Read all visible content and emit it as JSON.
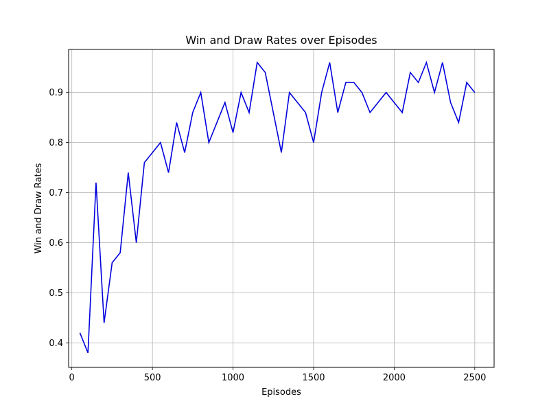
{
  "chart_data": {
    "type": "line",
    "title": "Win and Draw Rates over Episodes",
    "xlabel": "Episodes",
    "ylabel": "Win and Draw Rates",
    "xlim": [
      -20,
      2620
    ],
    "ylim": [
      0.351,
      0.986
    ],
    "x_ticks": [
      0,
      500,
      1000,
      1500,
      2000,
      2500
    ],
    "y_ticks": [
      0.4,
      0.5,
      0.6,
      0.7,
      0.8,
      0.9
    ],
    "grid": true,
    "legend": "none",
    "series": [
      {
        "color": "#0000dd",
        "x": [
          50,
          100,
          150,
          200,
          250,
          300,
          350,
          400,
          450,
          500,
          550,
          600,
          650,
          700,
          750,
          800,
          850,
          900,
          950,
          1000,
          1050,
          1100,
          1150,
          1200,
          1250,
          1300,
          1350,
          1400,
          1450,
          1500,
          1550,
          1600,
          1650,
          1700,
          1750,
          1800,
          1850,
          1900,
          1950,
          2000,
          2050,
          2100,
          2150,
          2200,
          2250,
          2300,
          2350,
          2400,
          2450,
          2500
        ],
        "y": [
          0.42,
          0.38,
          0.72,
          0.44,
          0.56,
          0.58,
          0.74,
          0.6,
          0.76,
          0.78,
          0.8,
          0.74,
          0.84,
          0.78,
          0.86,
          0.9,
          0.8,
          0.84,
          0.88,
          0.82,
          0.9,
          0.86,
          0.96,
          0.94,
          0.86,
          0.78,
          0.9,
          0.88,
          0.86,
          0.8,
          0.9,
          0.96,
          0.86,
          0.92,
          0.92,
          0.9,
          0.86,
          0.88,
          0.9,
          0.88,
          0.86,
          0.94,
          0.92,
          0.96,
          0.9,
          0.96,
          0.88,
          0.84,
          0.92,
          0.9
        ]
      }
    ]
  }
}
